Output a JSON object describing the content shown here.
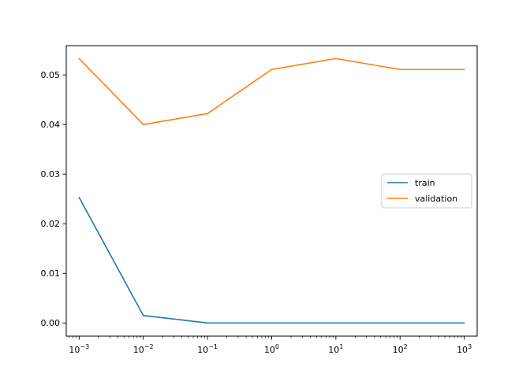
{
  "chart_data": {
    "type": "line",
    "title": "",
    "xlabel": "",
    "ylabel": "",
    "x_scale": "log",
    "x": [
      0.001,
      0.01,
      0.1,
      1,
      10,
      100,
      1000
    ],
    "xlim": [
      0.00063,
      1590
    ],
    "ylim": [
      -0.00266,
      0.0559
    ],
    "x_ticks": [
      {
        "value": 0.001,
        "base": "10",
        "exp": "−3"
      },
      {
        "value": 0.01,
        "base": "10",
        "exp": "−2"
      },
      {
        "value": 0.1,
        "base": "10",
        "exp": "−1"
      },
      {
        "value": 1,
        "base": "10",
        "exp": "0"
      },
      {
        "value": 10,
        "base": "10",
        "exp": "1"
      },
      {
        "value": 100,
        "base": "10",
        "exp": "2"
      },
      {
        "value": 1000,
        "base": "10",
        "exp": "3"
      }
    ],
    "y_ticks": [
      {
        "value": 0.0,
        "label": "0.00"
      },
      {
        "value": 0.01,
        "label": "0.01"
      },
      {
        "value": 0.02,
        "label": "0.02"
      },
      {
        "value": 0.03,
        "label": "0.03"
      },
      {
        "value": 0.04,
        "label": "0.04"
      },
      {
        "value": 0.05,
        "label": "0.05"
      }
    ],
    "grid": false,
    "legend_position": "center-right",
    "series": [
      {
        "name": "train",
        "color": "#1f77b4",
        "values": [
          0.0253,
          0.0015,
          0.0,
          0.0,
          0.0,
          0.0,
          0.0
        ]
      },
      {
        "name": "validation",
        "color": "#ff7f0e",
        "values": [
          0.0533,
          0.04,
          0.0422,
          0.0511,
          0.0533,
          0.0511,
          0.0511
        ]
      }
    ]
  }
}
